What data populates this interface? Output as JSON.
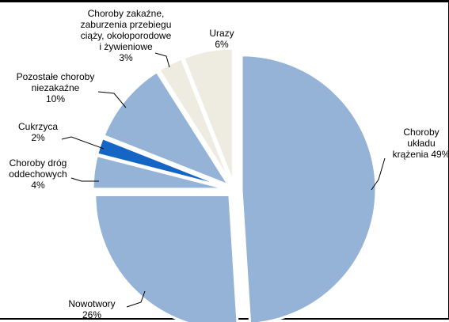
{
  "chart_data": {
    "type": "pie",
    "title": "",
    "slices": [
      {
        "lines": [
          "Choroby",
          "układu",
          "krążenia 49%"
        ],
        "category": "Choroby układu krążenia",
        "value": 49,
        "color": "#95b3d7"
      },
      {
        "lines": [
          "Nowotwory",
          "26%"
        ],
        "category": "Nowotwory",
        "value": 26,
        "color": "#95b3d7"
      },
      {
        "lines": [
          "Choroby dróg",
          "oddechowych",
          "4%"
        ],
        "category": "Choroby dróg oddechowych",
        "value": 4,
        "color": "#95b3d7"
      },
      {
        "lines": [
          "Cukrzyca",
          "2%"
        ],
        "category": "Cukrzyca",
        "value": 2,
        "color": "#1566c4"
      },
      {
        "lines": [
          "Pozostałe choroby",
          "niezakaźne",
          "10%"
        ],
        "category": "Pozostałe choroby niezakaźne",
        "value": 10,
        "color": "#95b3d7"
      },
      {
        "lines": [
          "Choroby zakaźne,",
          "zaburzenia przebiegu",
          "ciąży, okołoporodowe",
          "i żywieniowe",
          "3%"
        ],
        "category": "Choroby zakaźne, zaburzenia przebiegu ciąży, okołoporodowe i żywieniowe",
        "value": 3,
        "color": "#eeece1"
      },
      {
        "lines": [
          "Urazy",
          "6%"
        ],
        "category": "Urazy",
        "value": 6,
        "color": "#eeece1"
      }
    ],
    "start_angle_deg": 0,
    "direction": "clockwise",
    "exploded": true,
    "legend": "none"
  }
}
